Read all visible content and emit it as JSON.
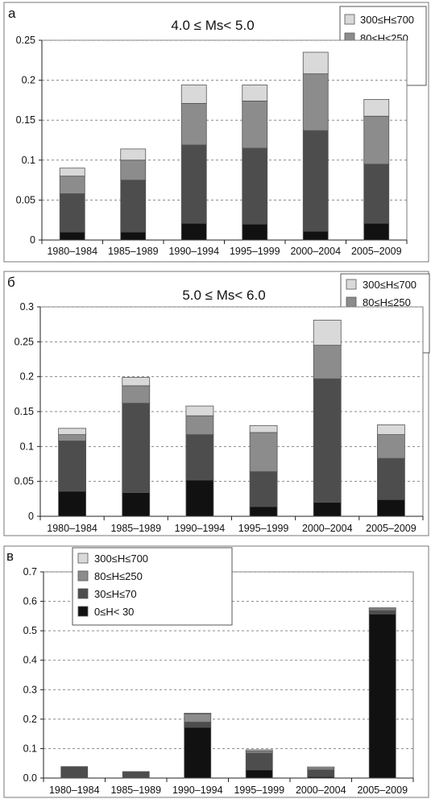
{
  "colors": {
    "s300_700": "#d9d9d9",
    "s80_250": "#8c8c8c",
    "s30_70": "#4d4d4d",
    "s0_30": "#111111"
  },
  "legend": [
    "300≤H≤700",
    "80≤H≤250",
    "30≤H≤70",
    "0≤H< 30"
  ],
  "chart_data": [
    {
      "type": "bar",
      "stacked": true,
      "panel": "а",
      "title": "4.0 ≤ Ms< 5.0",
      "categories": [
        "1980–1984",
        "1985–1989",
        "1990–1994",
        "1995–1999",
        "2000–2004",
        "2005–2009"
      ],
      "ylim": [
        0,
        0.25
      ],
      "yticks": [
        "0",
        "0.05",
        "0.1",
        "0.15",
        "0.2",
        "0.25"
      ],
      "legend_position": "top-right",
      "series": [
        {
          "name": "0≤H< 30",
          "values": [
            0.01,
            0.01,
            0.021,
            0.02,
            0.011,
            0.021
          ]
        },
        {
          "name": "30≤H≤70",
          "values": [
            0.048,
            0.065,
            0.098,
            0.095,
            0.126,
            0.074
          ]
        },
        {
          "name": "80≤H≤250",
          "values": [
            0.022,
            0.025,
            0.052,
            0.059,
            0.071,
            0.06
          ]
        },
        {
          "name": "300≤H≤700",
          "values": [
            0.01,
            0.014,
            0.023,
            0.02,
            0.027,
            0.021
          ]
        }
      ]
    },
    {
      "type": "bar",
      "stacked": true,
      "panel": "б",
      "title": "5.0 ≤ Ms< 6.0",
      "categories": [
        "1980–1984",
        "1985–1989",
        "1990–1994",
        "1995–1999",
        "2000–2004",
        "2005–2009"
      ],
      "ylim": [
        0,
        0.3
      ],
      "yticks": [
        "0",
        "0.05",
        "0.1",
        "0.15",
        "0.2",
        "0.25",
        "0.3"
      ],
      "legend_position": "top-right",
      "series": [
        {
          "name": "0≤H< 30",
          "values": [
            0.036,
            0.034,
            0.052,
            0.014,
            0.02,
            0.024
          ]
        },
        {
          "name": "30≤H≤70",
          "values": [
            0.072,
            0.128,
            0.065,
            0.05,
            0.177,
            0.059
          ]
        },
        {
          "name": "80≤H≤250",
          "values": [
            0.009,
            0.025,
            0.027,
            0.056,
            0.048,
            0.034
          ]
        },
        {
          "name": "300≤H≤700",
          "values": [
            0.009,
            0.012,
            0.014,
            0.01,
            0.036,
            0.014
          ]
        }
      ]
    },
    {
      "type": "bar",
      "stacked": true,
      "panel": "в",
      "title": "",
      "categories": [
        "1980–1984",
        "1985–1989",
        "1990–1994",
        "1995–1999",
        "2000–2004",
        "2005–2009"
      ],
      "ylim": [
        0,
        0.7
      ],
      "yticks": [
        "0.0",
        "0.1",
        "0.2",
        "0.3",
        "0.4",
        "0.5",
        "0.6",
        "0.7"
      ],
      "legend_position": "top-left",
      "series": [
        {
          "name": "0≤H< 30",
          "values": [
            0.0,
            0.0,
            0.172,
            0.028,
            0.005,
            0.557
          ]
        },
        {
          "name": "30≤H≤70",
          "values": [
            0.039,
            0.022,
            0.018,
            0.057,
            0.023,
            0.012
          ]
        },
        {
          "name": "80≤H≤250",
          "values": [
            0.0,
            0.0,
            0.028,
            0.007,
            0.006,
            0.006
          ]
        },
        {
          "name": "300≤H≤700",
          "values": [
            0.0,
            0.0,
            0.002,
            0.004,
            0.004,
            0.003
          ]
        }
      ]
    }
  ]
}
